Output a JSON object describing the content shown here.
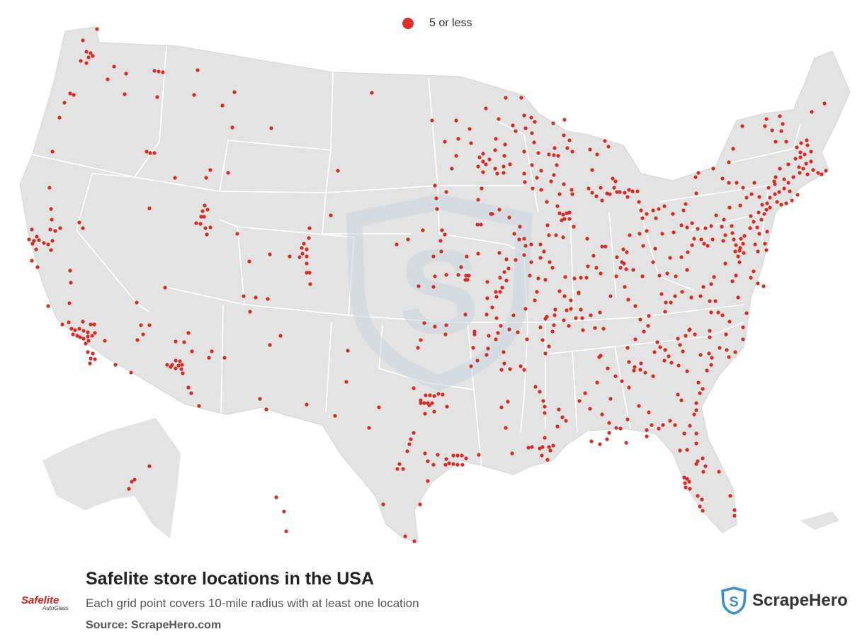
{
  "legend": {
    "label": "5 or less",
    "color": "#e0302a"
  },
  "footer": {
    "title": "Safelite store locations in the USA",
    "subtitle": "Each grid point covers 10-mile radius with at least one location",
    "source": "Source: ScrapeHero.com"
  },
  "brand_logo": {
    "text": "Safelite",
    "subtext": "AutoGlass"
  },
  "scrapehero_logo": {
    "text": "ScrapeHero"
  },
  "colors": {
    "land": "#e3e3e3",
    "border": "#ffffff",
    "dot": "#d42b22",
    "watermark": "#c9d6e0"
  },
  "icons": [
    "safelite-logo-icon",
    "scrapehero-shield-icon",
    "scrapehero-watermark-icon"
  ]
}
